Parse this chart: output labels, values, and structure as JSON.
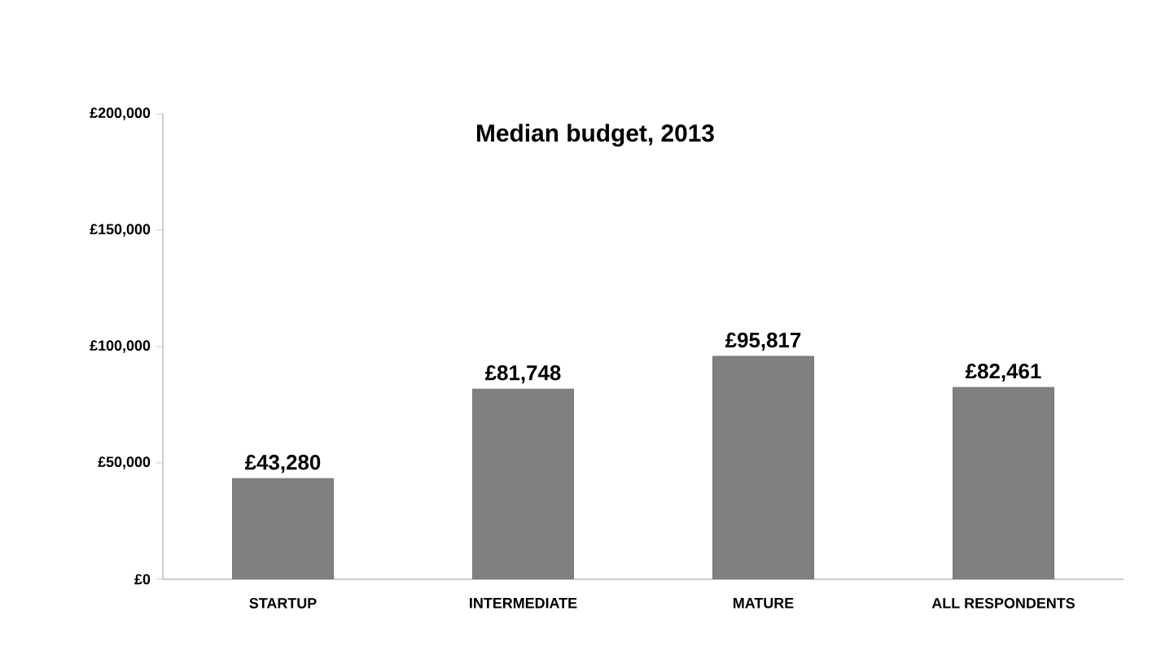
{
  "chart_data": {
    "type": "bar",
    "title": "Median budget, 2013",
    "categories": [
      "STARTUP",
      "INTERMEDIATE",
      "MATURE",
      "ALL RESPONDENTS"
    ],
    "values": [
      43280,
      81748,
      95817,
      82461
    ],
    "value_labels": [
      "£43,280",
      "£81,748",
      "£95,817",
      "£82,461"
    ],
    "color": "#808080",
    "ylim": [
      0,
      200000
    ],
    "yticks": [
      {
        "value": 0,
        "label": "£0"
      },
      {
        "value": 50000,
        "label": "£50,000"
      },
      {
        "value": 100000,
        "label": "£100,000"
      },
      {
        "value": 150000,
        "label": "£150,000"
      },
      {
        "value": 200000,
        "label": "£200,000"
      }
    ],
    "grid": false
  }
}
